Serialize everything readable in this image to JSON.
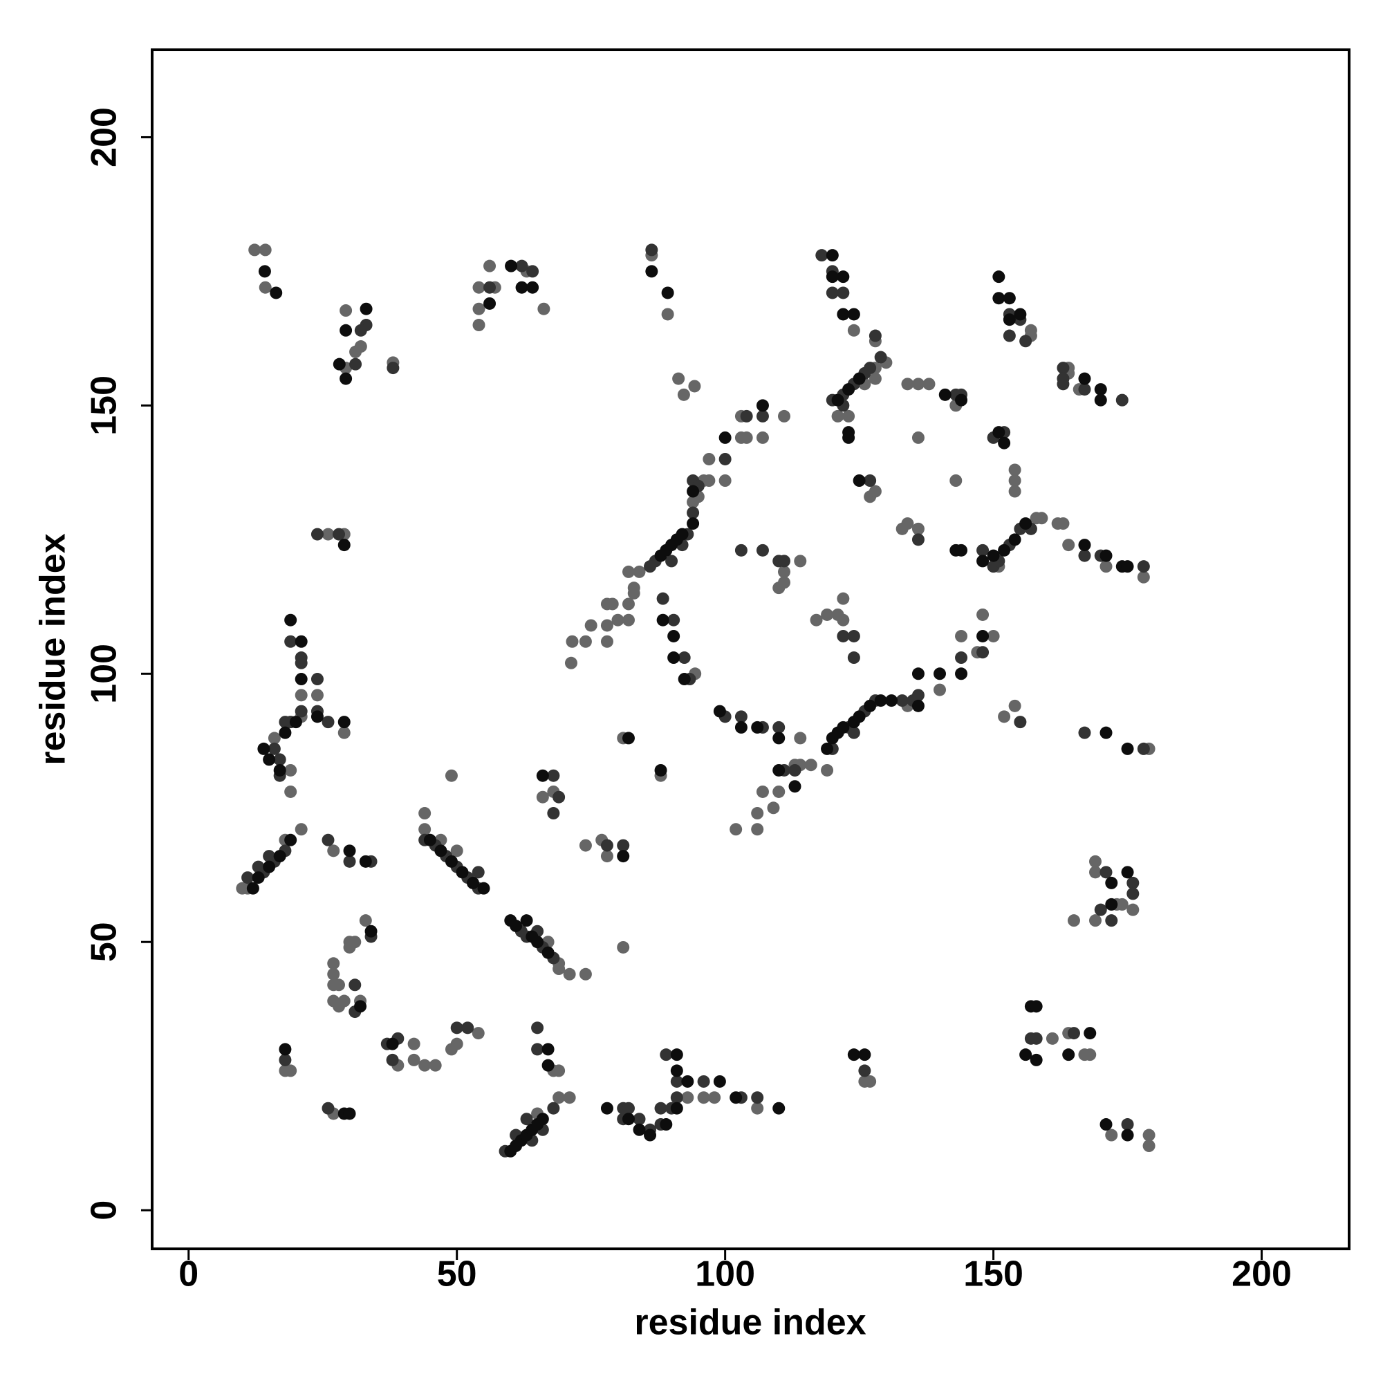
{
  "chart_data": {
    "type": "scatter",
    "xlabel": "residue index",
    "ylabel": "residue index",
    "xlim": [
      -6.8,
      216.3
    ],
    "ylim": [
      -7.2,
      216.3
    ],
    "xticks": [
      0,
      50,
      100,
      150,
      200
    ],
    "yticks": [
      0,
      50,
      100,
      150,
      200
    ],
    "grid": false,
    "series": [
      {
        "color": "#666666",
        "x": [
          12.3,
          14.3,
          14.3,
          29.3,
          32.1,
          31.1,
          38.1,
          29.3,
          54.1,
          54.1,
          56.1,
          54.1,
          57.1,
          66.2,
          63,
          86.3,
          89.3,
          91.3,
          92.3,
          94.3,
          71.3,
          71.5,
          74,
          75,
          78,
          78,
          78,
          79,
          80,
          82,
          82,
          83,
          83,
          82,
          84,
          94,
          95,
          96,
          97,
          97,
          100,
          103,
          103,
          104,
          107,
          111,
          94.4,
          106,
          106,
          102,
          107,
          109,
          110,
          113,
          114,
          116,
          119,
          114,
          134,
          140,
          144,
          148,
          150,
          147,
          111,
          110,
          111,
          114,
          117,
          119,
          121,
          122,
          122,
          124,
          128,
          130,
          128,
          126,
          128,
          121,
          123,
          127,
          128,
          134,
          136,
          138,
          136,
          143,
          143,
          133,
          134,
          136,
          157,
          157,
          164,
          164,
          166,
          154,
          154,
          154,
          151,
          158,
          159,
          162,
          163,
          164,
          171,
          178,
          152,
          154,
          179,
          169,
          169,
          176,
          173,
          169,
          165,
          174,
          161,
          164,
          167,
          168,
          172,
          179,
          179,
          126,
          127,
          93,
          96,
          98,
          106,
          69,
          71,
          65,
          68,
          69,
          54,
          49,
          50,
          42,
          39,
          42,
          44,
          46,
          19,
          18,
          27,
          27,
          27,
          27,
          28,
          27,
          29,
          28,
          32,
          30,
          31,
          33,
          30,
          69,
          69,
          71,
          74,
          67,
          81,
          44,
          44,
          50,
          47,
          49,
          10,
          11,
          21,
          18,
          27,
          16,
          19,
          19,
          21,
          24,
          29,
          21,
          26,
          29,
          66,
          68,
          74,
          77,
          78,
          81,
          88,
          113
        ],
        "y": [
          179,
          179,
          172,
          167.7,
          161,
          160,
          158,
          157,
          165,
          168,
          176,
          172,
          172,
          168,
          175,
          178,
          167,
          155,
          152,
          153.6,
          102,
          106,
          106,
          109,
          106,
          109,
          113,
          113,
          110,
          110,
          113,
          115,
          116,
          119,
          119,
          132,
          133,
          136,
          136,
          140,
          136,
          148,
          144,
          144,
          144,
          148,
          100,
          74,
          71,
          71,
          78,
          75,
          78,
          83,
          83,
          83,
          82,
          88,
          94,
          97,
          107,
          111,
          107,
          104,
          119,
          116,
          117,
          121,
          110,
          111,
          111,
          114,
          110,
          164,
          162,
          158,
          157,
          154,
          155,
          148,
          148,
          133,
          134,
          154,
          154,
          154,
          144,
          150,
          136,
          127,
          128,
          127,
          163,
          164,
          157,
          156,
          153,
          138,
          136,
          134,
          120,
          129,
          129,
          128,
          128,
          124,
          120,
          118,
          92,
          94,
          86,
          65,
          63,
          56,
          57,
          54,
          54,
          57,
          32,
          33,
          29,
          29,
          14,
          14,
          12,
          24,
          24,
          21,
          21,
          21,
          19,
          21,
          21,
          18,
          26,
          26,
          33,
          30,
          31,
          31,
          27,
          28,
          27,
          27,
          26,
          26,
          18,
          46,
          44,
          42,
          42,
          39,
          39,
          38,
          39,
          50,
          50,
          54,
          49,
          46,
          45,
          44,
          44,
          50,
          49,
          74,
          71,
          67,
          69,
          81,
          60,
          60,
          71,
          69,
          67,
          88,
          82,
          78,
          96,
          96,
          89,
          92,
          126,
          126,
          77,
          78,
          68,
          69,
          66,
          88,
          81,
          82
        ]
      },
      {
        "color": "#333333",
        "x": [
          33.1,
          32.1,
          31.1,
          38.1,
          56.1,
          62.1,
          64.1,
          86.3,
          87,
          86,
          90,
          92,
          93,
          94,
          94,
          95,
          100,
          104,
          107,
          88.4,
          90.4,
          92.4,
          93.4,
          100,
          103,
          107,
          110,
          111,
          113,
          120,
          123,
          124,
          126,
          128,
          133,
          135,
          136,
          144,
          148,
          118,
          120,
          120,
          122,
          126,
          124,
          122,
          120,
          122,
          127,
          127,
          143,
          144,
          136,
          153,
          155,
          153,
          156,
          163,
          163,
          163,
          167,
          174,
          150,
          152,
          148,
          150,
          151,
          153,
          155,
          157,
          167,
          170,
          178,
          155,
          167,
          178,
          171,
          176,
          176,
          170,
          172,
          157,
          158,
          165,
          175,
          126,
          81,
          82,
          81,
          84,
          86,
          88,
          88,
          90,
          89,
          91,
          91,
          96,
          103,
          106,
          59,
          61,
          63,
          64,
          66,
          68,
          65,
          65,
          62,
          63,
          65,
          66,
          68,
          44,
          46,
          48,
          50,
          52,
          54,
          54,
          11,
          14,
          16,
          18,
          13,
          15,
          26,
          30,
          34,
          16,
          17,
          17,
          19,
          18,
          21,
          21,
          21,
          19,
          24,
          24,
          26,
          24,
          28,
          68,
          69,
          68,
          78,
          81,
          18,
          26,
          31,
          34,
          37,
          39,
          38,
          31,
          50,
          52,
          110,
          107,
          103,
          111,
          124,
          124,
          122,
          128,
          129
        ],
        "y": [
          165,
          164,
          157.7,
          157,
          172,
          176,
          175,
          179,
          121,
          120,
          121,
          124,
          126,
          130,
          136,
          135,
          140,
          148,
          148,
          114,
          110,
          103,
          99,
          92,
          92,
          90,
          90,
          82,
          82,
          86,
          90,
          89,
          93,
          95,
          95,
          95,
          96,
          103,
          104,
          178,
          175,
          171,
          171,
          156,
          154,
          152,
          151,
          150,
          157,
          136,
          152,
          152,
          125,
          167,
          166,
          163,
          162,
          157,
          155,
          154,
          153,
          151,
          144,
          145,
          123,
          120,
          121,
          124,
          127,
          127,
          122,
          122,
          120,
          91,
          89,
          86,
          63,
          61,
          59,
          56,
          54,
          32,
          32,
          33,
          16,
          26,
          19,
          19,
          17,
          17,
          15,
          16,
          19,
          19,
          29,
          24,
          21,
          24,
          21,
          21,
          11,
          14,
          17,
          13,
          15,
          19,
          34,
          30,
          52,
          51,
          52,
          49,
          47,
          69,
          68,
          66,
          64,
          62,
          60,
          63,
          62,
          63,
          65,
          67,
          64,
          66,
          69,
          65,
          65,
          86,
          84,
          81,
          91,
          91,
          93,
          102,
          103,
          106,
          99,
          93,
          91,
          126,
          126,
          81,
          77,
          74,
          68,
          68,
          28,
          19,
          37,
          51,
          31,
          32,
          28,
          42,
          34,
          34,
          121,
          123,
          123,
          121,
          107,
          103,
          107,
          163,
          159
        ]
      },
      {
        "color": "#0d0d0d",
        "x": [
          14.2,
          16.3,
          29.3,
          33.1,
          29.3,
          28.1,
          56.1,
          60.1,
          62.1,
          64.1,
          86.3,
          89.3,
          88,
          89,
          90,
          91,
          92,
          94,
          94,
          100,
          107,
          88.4,
          90.4,
          90.4,
          92.4,
          99,
          103,
          106,
          110,
          110,
          113,
          119,
          120,
          121,
          122,
          124,
          125,
          127,
          129,
          136,
          136,
          144,
          148,
          120,
          120,
          122,
          122,
          124,
          125,
          123,
          121,
          123,
          123,
          125,
          141,
          144,
          143,
          144,
          151,
          151,
          153,
          153,
          155,
          167,
          170,
          170,
          151,
          152,
          148,
          150,
          152,
          154,
          156,
          167,
          171,
          174,
          175,
          171,
          175,
          172,
          175,
          172,
          157,
          158,
          156,
          158,
          168,
          164,
          171,
          175,
          124,
          126,
          78,
          82,
          84,
          86,
          89,
          91,
          91,
          91,
          93,
          99,
          102,
          110,
          60,
          61,
          62,
          63,
          64,
          65,
          66,
          67,
          67,
          60,
          61,
          63,
          64,
          65,
          67,
          45,
          47,
          49,
          51,
          53,
          55,
          12,
          13,
          15,
          17,
          19,
          30,
          33,
          14,
          15,
          17,
          18,
          20,
          21,
          21,
          19,
          24,
          29,
          29,
          66,
          81,
          82,
          88,
          18,
          29,
          30,
          32,
          34,
          38,
          140,
          131
        ],
        "y": [
          175,
          171,
          164,
          168,
          155,
          157.7,
          169,
          176,
          172,
          172,
          175,
          171,
          122,
          123,
          124,
          125,
          126,
          128,
          134,
          144,
          150,
          110,
          107,
          103,
          99,
          93,
          90,
          90,
          88,
          82,
          79,
          86,
          88,
          89,
          90,
          91,
          92,
          94,
          95,
          94,
          100,
          100,
          107,
          178,
          174,
          174,
          167,
          167,
          155,
          153,
          151,
          145,
          144,
          136,
          152,
          151,
          123,
          123,
          174,
          170,
          170,
          166,
          167,
          155,
          153,
          151,
          145,
          143,
          121,
          122,
          123,
          125,
          128,
          124,
          122,
          120,
          120,
          89,
          86,
          61,
          63,
          57,
          38,
          38,
          29,
          28,
          33,
          29,
          16,
          14,
          29,
          29,
          19,
          17,
          15,
          14,
          16,
          19,
          29,
          26,
          24,
          24,
          21,
          19,
          11,
          12,
          13,
          14,
          15,
          16,
          17,
          30,
          27,
          54,
          53,
          54,
          51,
          50,
          48,
          69,
          67,
          65,
          63,
          61,
          60,
          60,
          62,
          64,
          66,
          69,
          67,
          65,
          86,
          84,
          82,
          89,
          91,
          99,
          106,
          110,
          92,
          91,
          124,
          81,
          66,
          88,
          82,
          30,
          18,
          18,
          38,
          52,
          31,
          100,
          95
        ]
      }
    ]
  }
}
